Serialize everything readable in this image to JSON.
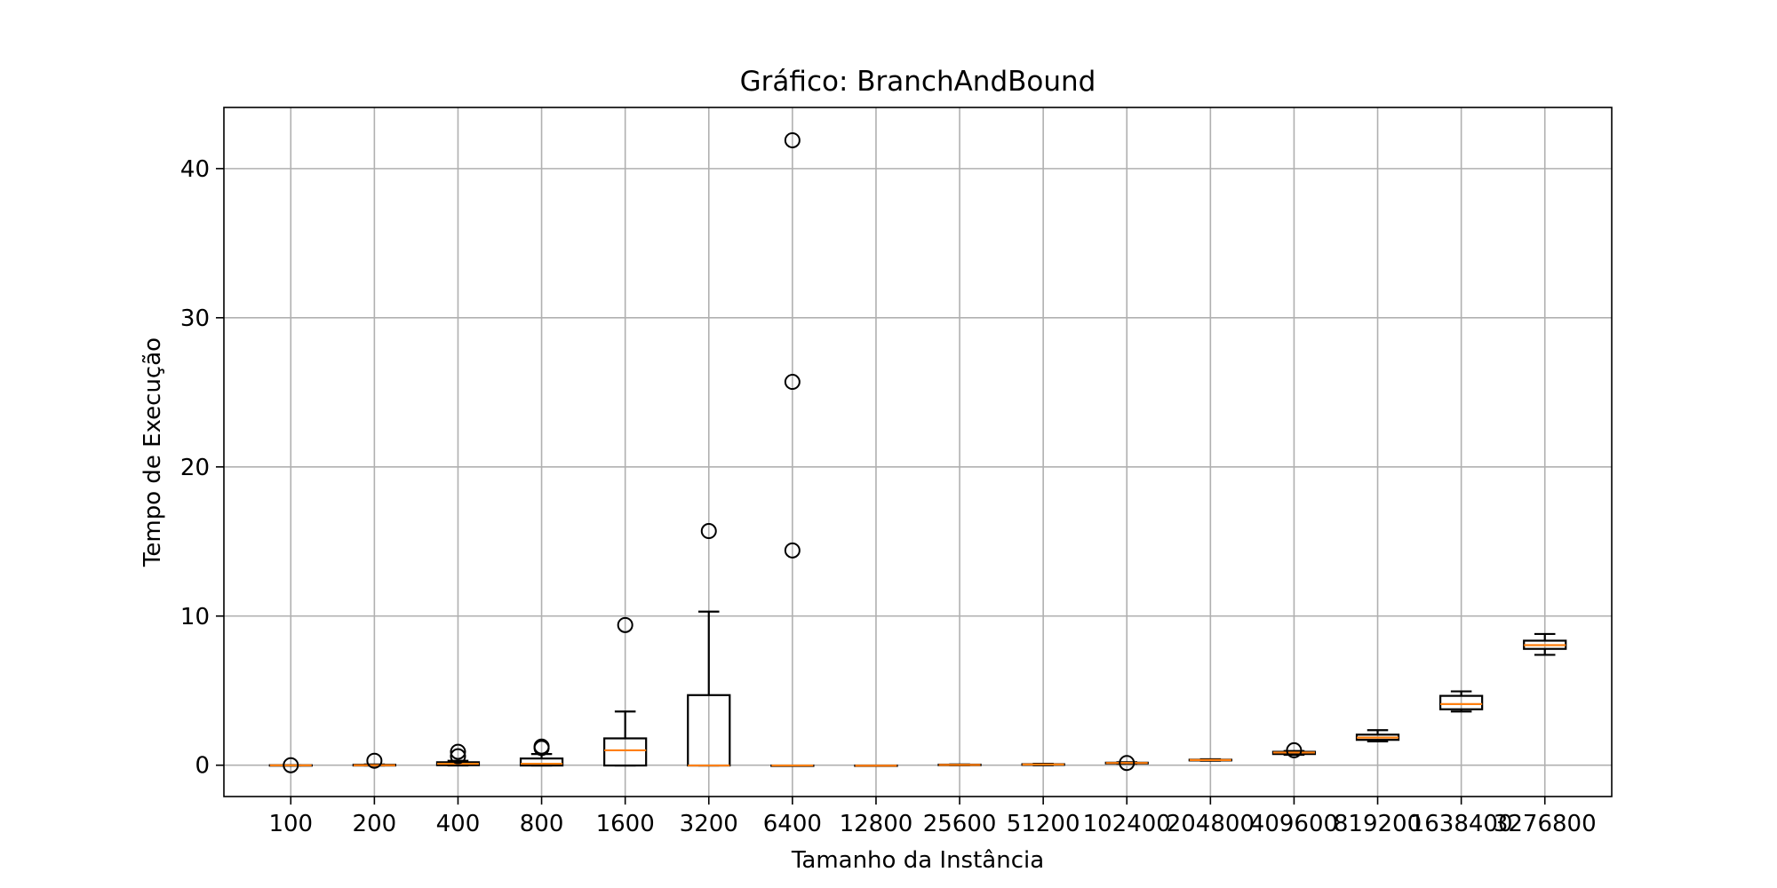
{
  "chart_data": {
    "type": "box",
    "title": "Gráfico: BranchAndBound",
    "xlabel": "Tamanho da Instância",
    "ylabel": "Tempo de Execução",
    "ylim": [
      -2.1,
      44.1
    ],
    "yticks": [
      0,
      10,
      20,
      30,
      40
    ],
    "grid": true,
    "categories": [
      "100",
      "200",
      "400",
      "800",
      "1600",
      "3200",
      "6400",
      "12800",
      "25600",
      "51200",
      "102400",
      "204800",
      "409600",
      "819200",
      "1638400",
      "3276800"
    ],
    "boxes": [
      {
        "whislo": -0.02,
        "q1": -0.02,
        "med": -0.01,
        "q3": 0.0,
        "whishi": 0.01,
        "fliers": [
          0.0
        ]
      },
      {
        "whislo": -0.02,
        "q1": -0.02,
        "med": 0.0,
        "q3": 0.03,
        "whishi": 0.05,
        "fliers": [
          0.3
        ]
      },
      {
        "whislo": -0.02,
        "q1": 0.0,
        "med": 0.1,
        "q3": 0.2,
        "whishi": 0.3,
        "fliers": [
          0.6,
          0.9
        ]
      },
      {
        "whislo": -0.02,
        "q1": -0.02,
        "med": 0.1,
        "q3": 0.45,
        "whishi": 0.75,
        "fliers": [
          1.15,
          1.25
        ]
      },
      {
        "whislo": -0.02,
        "q1": -0.02,
        "med": 1.0,
        "q3": 1.8,
        "whishi": 3.6,
        "fliers": [
          9.4
        ]
      },
      {
        "whislo": -0.02,
        "q1": -0.02,
        "med": -0.02,
        "q3": 4.7,
        "whishi": 10.3,
        "fliers": [
          15.7
        ]
      },
      {
        "whislo": -0.02,
        "q1": -0.02,
        "med": -0.02,
        "q3": -0.02,
        "whishi": -0.02,
        "fliers": [
          14.4,
          25.7,
          41.9
        ]
      },
      {
        "whislo": -0.03,
        "q1": -0.03,
        "med": -0.03,
        "q3": -0.02,
        "whishi": -0.02,
        "fliers": []
      },
      {
        "whislo": 0.0,
        "q1": 0.0,
        "med": 0.02,
        "q3": 0.04,
        "whishi": 0.05,
        "fliers": []
      },
      {
        "whislo": 0.0,
        "q1": 0.02,
        "med": 0.05,
        "q3": 0.07,
        "whishi": 0.1,
        "fliers": []
      },
      {
        "whislo": 0.1,
        "q1": 0.12,
        "med": 0.15,
        "q3": 0.17,
        "whishi": 0.2,
        "fliers": [
          0.15
        ]
      },
      {
        "whislo": 0.3,
        "q1": 0.32,
        "med": 0.35,
        "q3": 0.37,
        "whishi": 0.4,
        "fliers": []
      },
      {
        "whislo": 0.7,
        "q1": 0.75,
        "med": 0.85,
        "q3": 0.9,
        "whishi": 0.95,
        "fliers": [
          1.0
        ]
      },
      {
        "whislo": 1.6,
        "q1": 1.7,
        "med": 1.85,
        "q3": 2.05,
        "whishi": 2.35,
        "fliers": []
      },
      {
        "whislo": 3.6,
        "q1": 3.75,
        "med": 4.1,
        "q3": 4.65,
        "whishi": 4.95,
        "fliers": []
      },
      {
        "whislo": 7.4,
        "q1": 7.8,
        "med": 8.05,
        "q3": 8.35,
        "whishi": 8.8,
        "fliers": []
      }
    ],
    "colors": {
      "box": "#000000",
      "median": "#ff7f0e",
      "grid": "#b0b0b0"
    }
  }
}
